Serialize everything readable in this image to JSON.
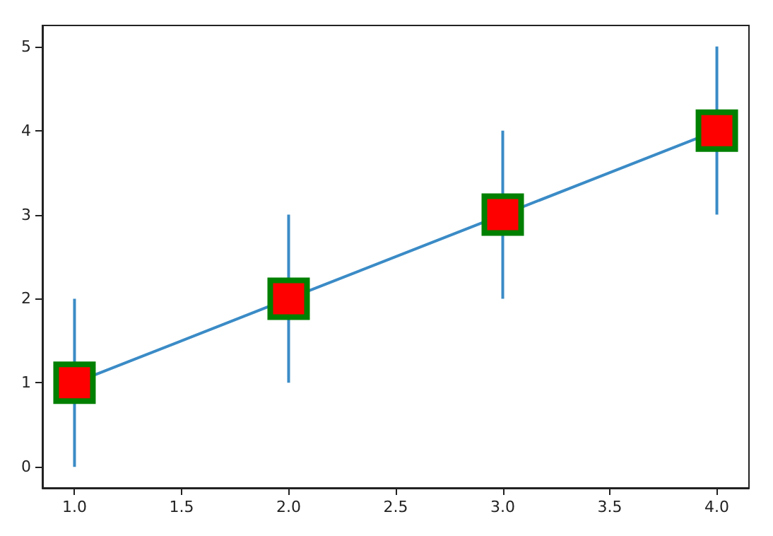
{
  "chart_data": {
    "type": "line",
    "x": [
      1,
      2,
      3,
      4
    ],
    "series": [
      {
        "color": "#3a8bc6",
        "colors": [
          "#ff0000",
          "#ff0000",
          "#ff0000",
          "#ff0000"
        ],
        "values": [
          1,
          2,
          3,
          4
        ],
        "errors": [
          1,
          1,
          1,
          1
        ]
      }
    ],
    "marker": "square",
    "xlim": [
      0.85,
      4.15
    ],
    "xticks": [
      {
        "value": 1,
        "label": "1.0"
      },
      {
        "value": 1.5,
        "label": "1.5"
      },
      {
        "value": 2,
        "label": "2.0"
      },
      {
        "value": 2.5,
        "label": "2.5"
      },
      {
        "value": 3,
        "label": "3.0"
      },
      {
        "value": 3.5,
        "label": "3.5"
      },
      {
        "value": 4,
        "label": "4.0"
      }
    ],
    "ylim": [
      -0.25,
      5.25
    ],
    "yticks": [
      0,
      1,
      2,
      3,
      4,
      5
    ],
    "grid": false
  }
}
